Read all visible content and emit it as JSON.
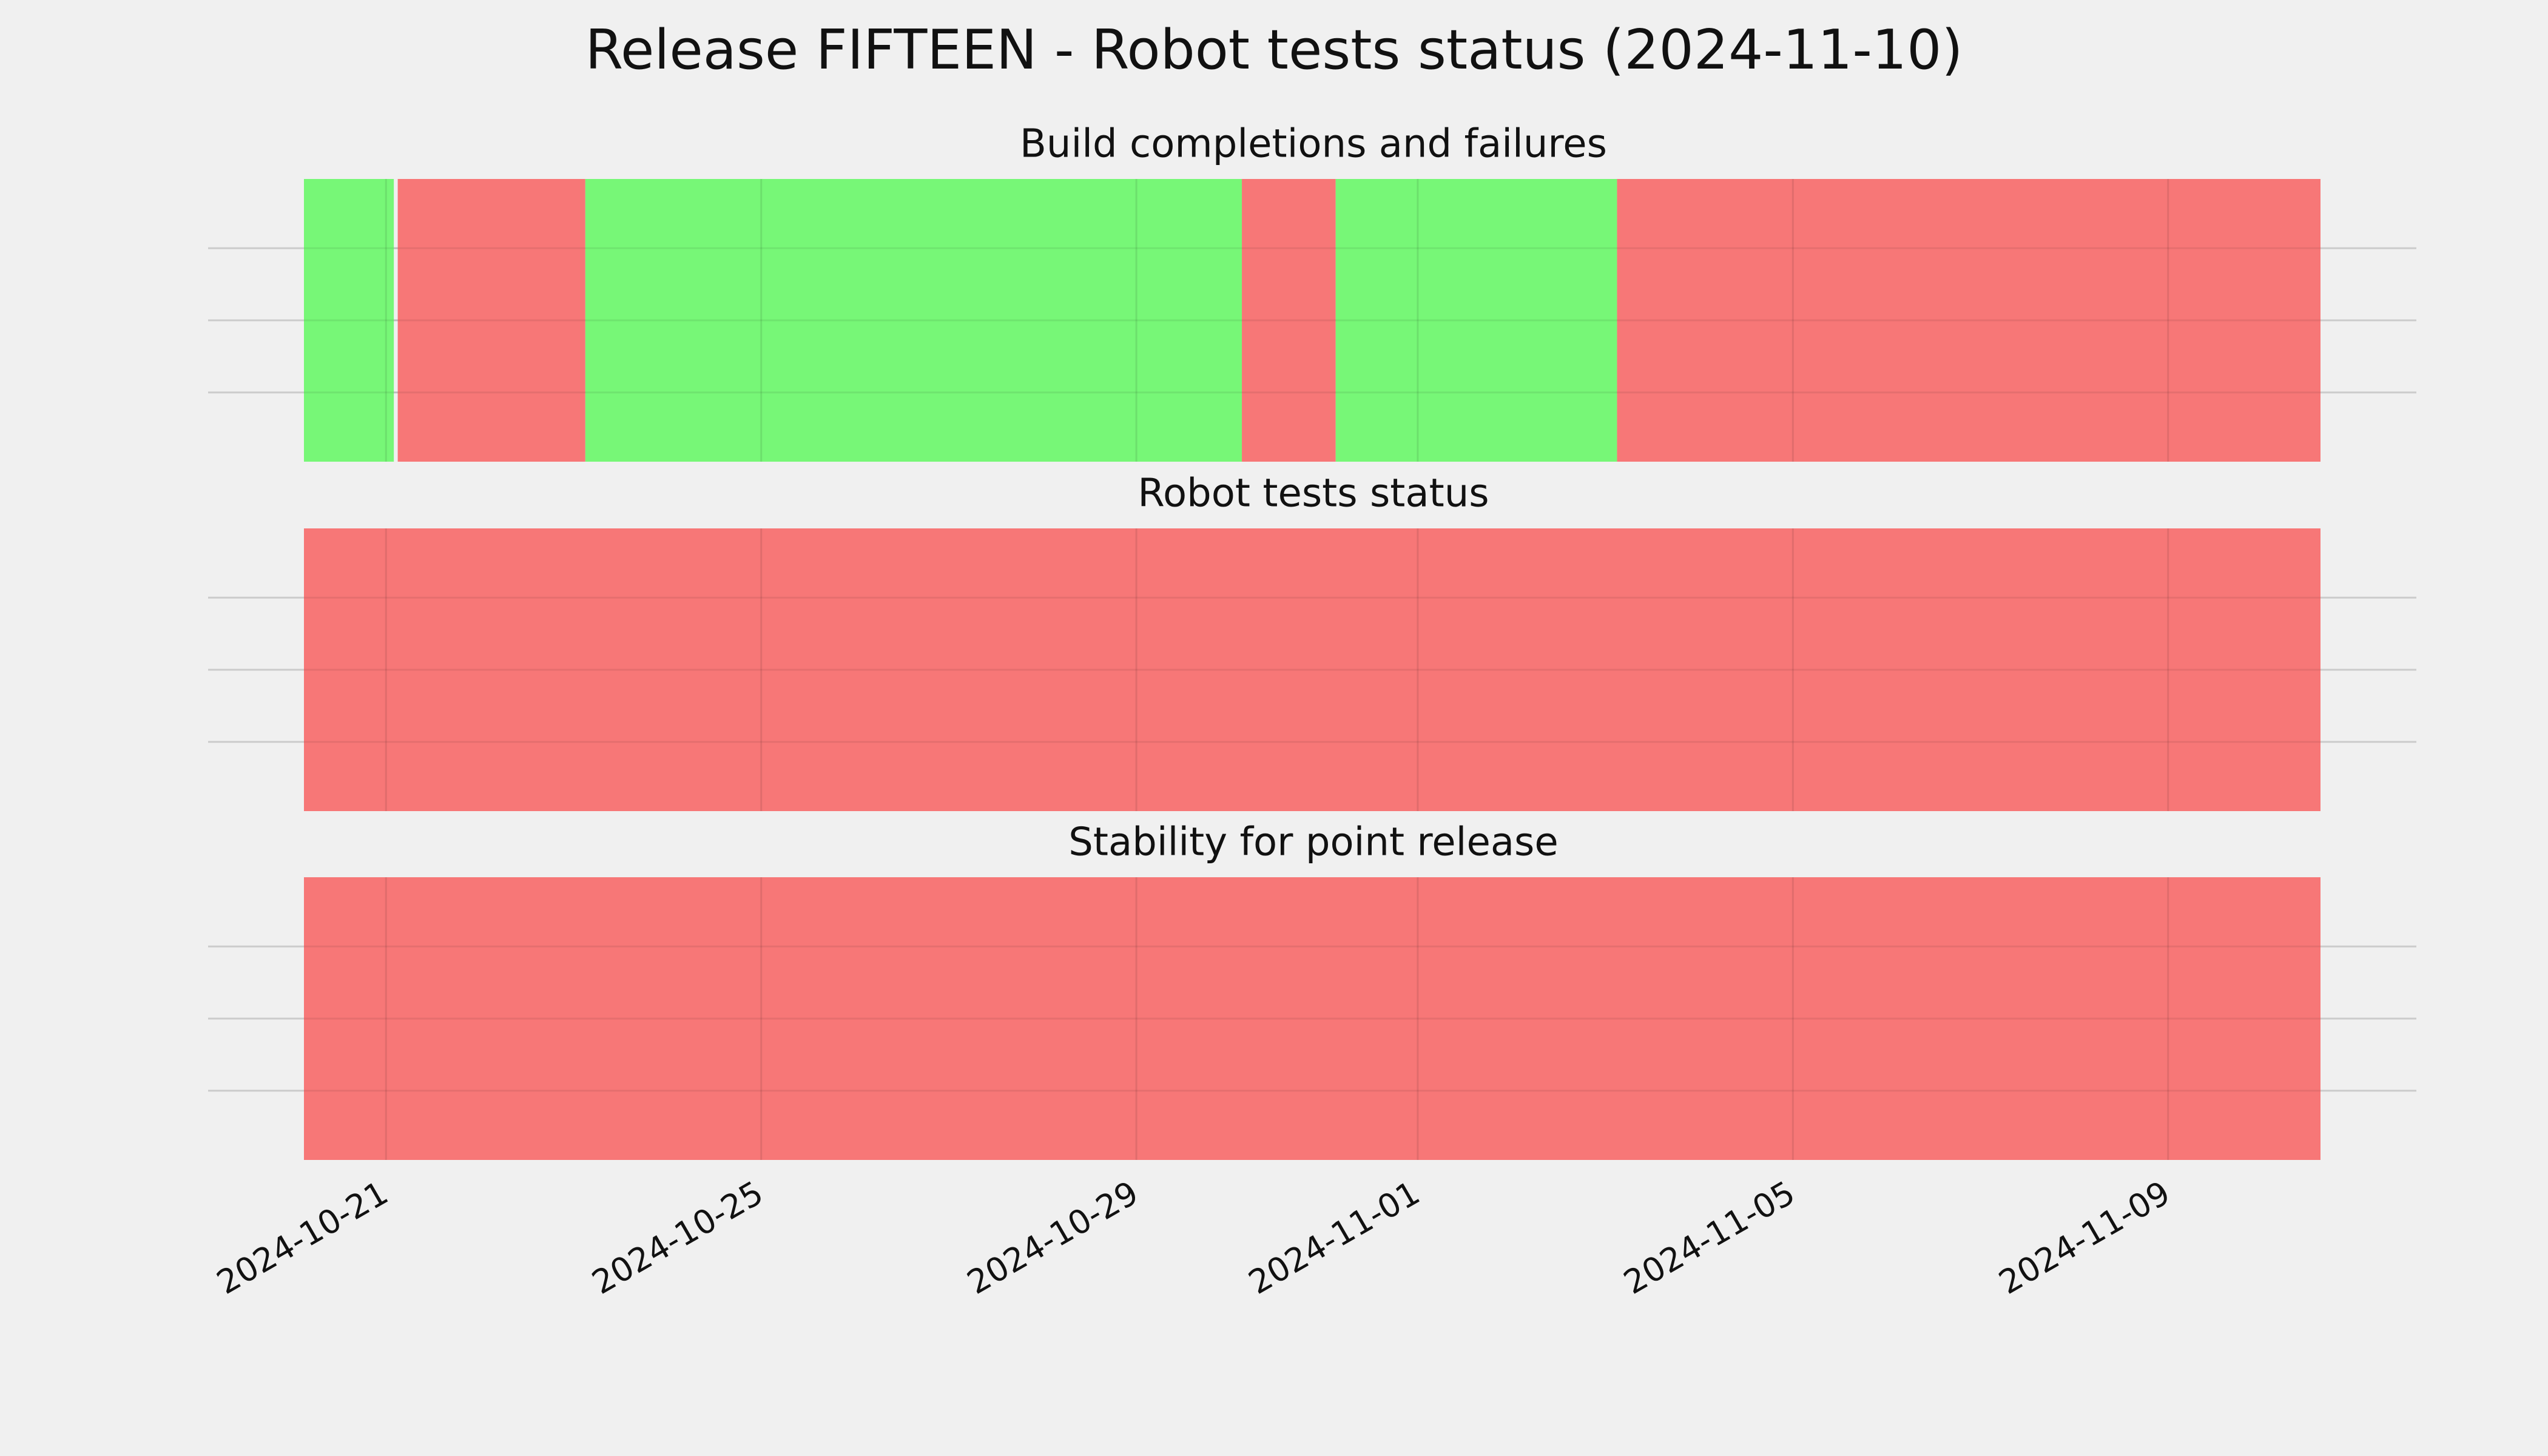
{
  "chart_data": {
    "type": "timeline",
    "title": "Release FIFTEEN - Robot tests status (2024-11-10)",
    "xlim": [
      "2024-10-20T03:00",
      "2024-11-10T15:00"
    ],
    "xticks": [
      "2024-10-21",
      "2024-10-25",
      "2024-10-29",
      "2024-11-01",
      "2024-11-05",
      "2024-11-09"
    ],
    "grid": true,
    "panels": [
      {
        "title": "Build completions and failures",
        "segments": [
          {
            "start": "2024-10-20T03:00",
            "end": "2024-10-21T02:00",
            "color": "#77f777"
          },
          {
            "start": "2024-10-21T03:00",
            "end": "2024-10-23T03:00",
            "color": "#f77777"
          },
          {
            "start": "2024-10-23T03:00",
            "end": "2024-10-30T03:00",
            "color": "#77f777"
          },
          {
            "start": "2024-10-30T03:00",
            "end": "2024-10-31T03:00",
            "color": "#f77777"
          },
          {
            "start": "2024-10-31T03:00",
            "end": "2024-11-03T03:00",
            "color": "#77f777"
          },
          {
            "start": "2024-11-03T03:00",
            "end": "2024-11-10T15:00",
            "color": "#f77777"
          }
        ]
      },
      {
        "title": "Robot tests status",
        "segments": [
          {
            "start": "2024-10-20T03:00",
            "end": "2024-11-10T15:00",
            "color": "#f77777"
          }
        ]
      },
      {
        "title": "Stability for point release",
        "segments": [
          {
            "start": "2024-10-20T03:00",
            "end": "2024-11-10T15:00",
            "color": "#f77777"
          }
        ]
      }
    ]
  }
}
